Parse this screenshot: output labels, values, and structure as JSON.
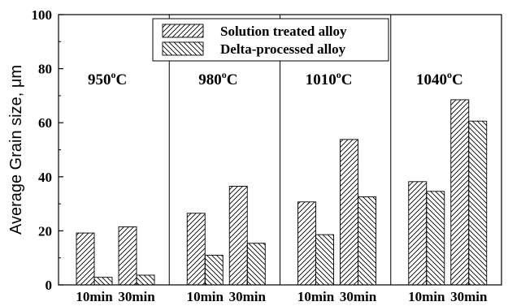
{
  "chart_data": {
    "type": "bar",
    "ylabel": "Average Grain size, μm",
    "ylim": [
      0,
      100
    ],
    "yticks": [
      0,
      20,
      40,
      60,
      80,
      100
    ],
    "groups": [
      {
        "title": "950",
        "title_sup": "o",
        "title_unit": "C",
        "categories": [
          "10min",
          "30min"
        ]
      },
      {
        "title": "980",
        "title_sup": "o",
        "title_unit": "C",
        "categories": [
          "10min",
          "30min"
        ]
      },
      {
        "title": "1010",
        "title_sup": "o",
        "title_unit": "C",
        "categories": [
          "10min",
          "30min"
        ]
      },
      {
        "title": "1040",
        "title_sup": "o",
        "title_unit": "C",
        "categories": [
          "10min",
          "30min"
        ]
      }
    ],
    "categories": [
      "10min",
      "30min",
      "10min",
      "30min",
      "10min",
      "30min",
      "10min",
      "30min"
    ],
    "series": [
      {
        "name": "Solution treated alloy",
        "pattern": "forward-hatch",
        "values": [
          19.2,
          21.5,
          26.5,
          36.5,
          30.7,
          53.8,
          38.2,
          68.5
        ]
      },
      {
        "name": "Delta-processed alloy",
        "pattern": "back-hatch",
        "values": [
          2.8,
          3.6,
          11.0,
          15.4,
          18.6,
          32.6,
          34.6,
          60.6
        ]
      }
    ],
    "legend_position": "top-center",
    "grid": false
  }
}
